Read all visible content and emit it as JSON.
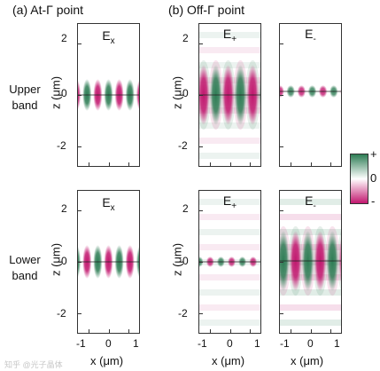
{
  "headers": {
    "a": "(a) At-Γ point",
    "b": "(b) Off-Γ point"
  },
  "row_labels": [
    {
      "line1": "Upper",
      "line2": "band"
    },
    {
      "line1": "Lower",
      "line2": "band"
    }
  ],
  "axes": {
    "ylabel": "z (μm)",
    "xlabel": "x (μm)",
    "yticks": [
      "2",
      "0",
      "-2"
    ],
    "xticks": [
      "-1",
      "0",
      "1"
    ]
  },
  "panels": [
    {
      "field": "E",
      "sub": "x"
    },
    {
      "field": "E",
      "sub": "+"
    },
    {
      "field": "E",
      "sub": "-"
    },
    {
      "field": "E",
      "sub": "x"
    },
    {
      "field": "E",
      "sub": "+"
    },
    {
      "field": "E",
      "sub": "-"
    }
  ],
  "colorbar": {
    "top": "+",
    "mid": "0",
    "bottom": "-"
  },
  "colors": {
    "positive": "#2e7d55",
    "negative": "#c2186f",
    "zero": "#ffffff"
  },
  "watermark": "知乎 @光子晶体"
}
